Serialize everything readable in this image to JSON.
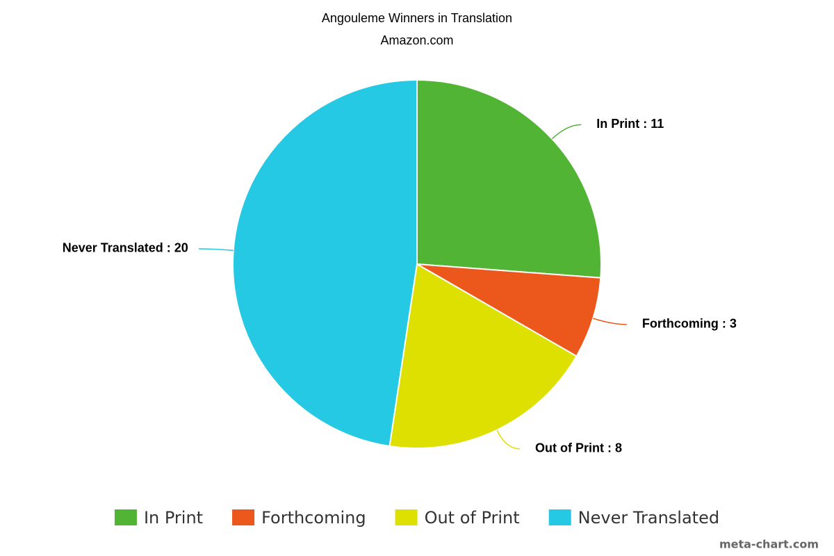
{
  "chart_data": {
    "type": "pie",
    "title": "Angouleme Winners in Translation",
    "subtitle": "Amazon.com",
    "categories": [
      "In Print",
      "Forthcoming",
      "Out of Print",
      "Never Translated"
    ],
    "values": [
      11,
      3,
      8,
      20
    ],
    "value_labels": [
      "In Print : 11",
      "Forthcoming : 3",
      "Out of Print : 8",
      "Never Translated : 20"
    ],
    "colors": [
      "#52b434",
      "#ec571c",
      "#dde000",
      "#25c9e3"
    ],
    "legend": "bottom",
    "watermark": "meta-chart.com"
  }
}
